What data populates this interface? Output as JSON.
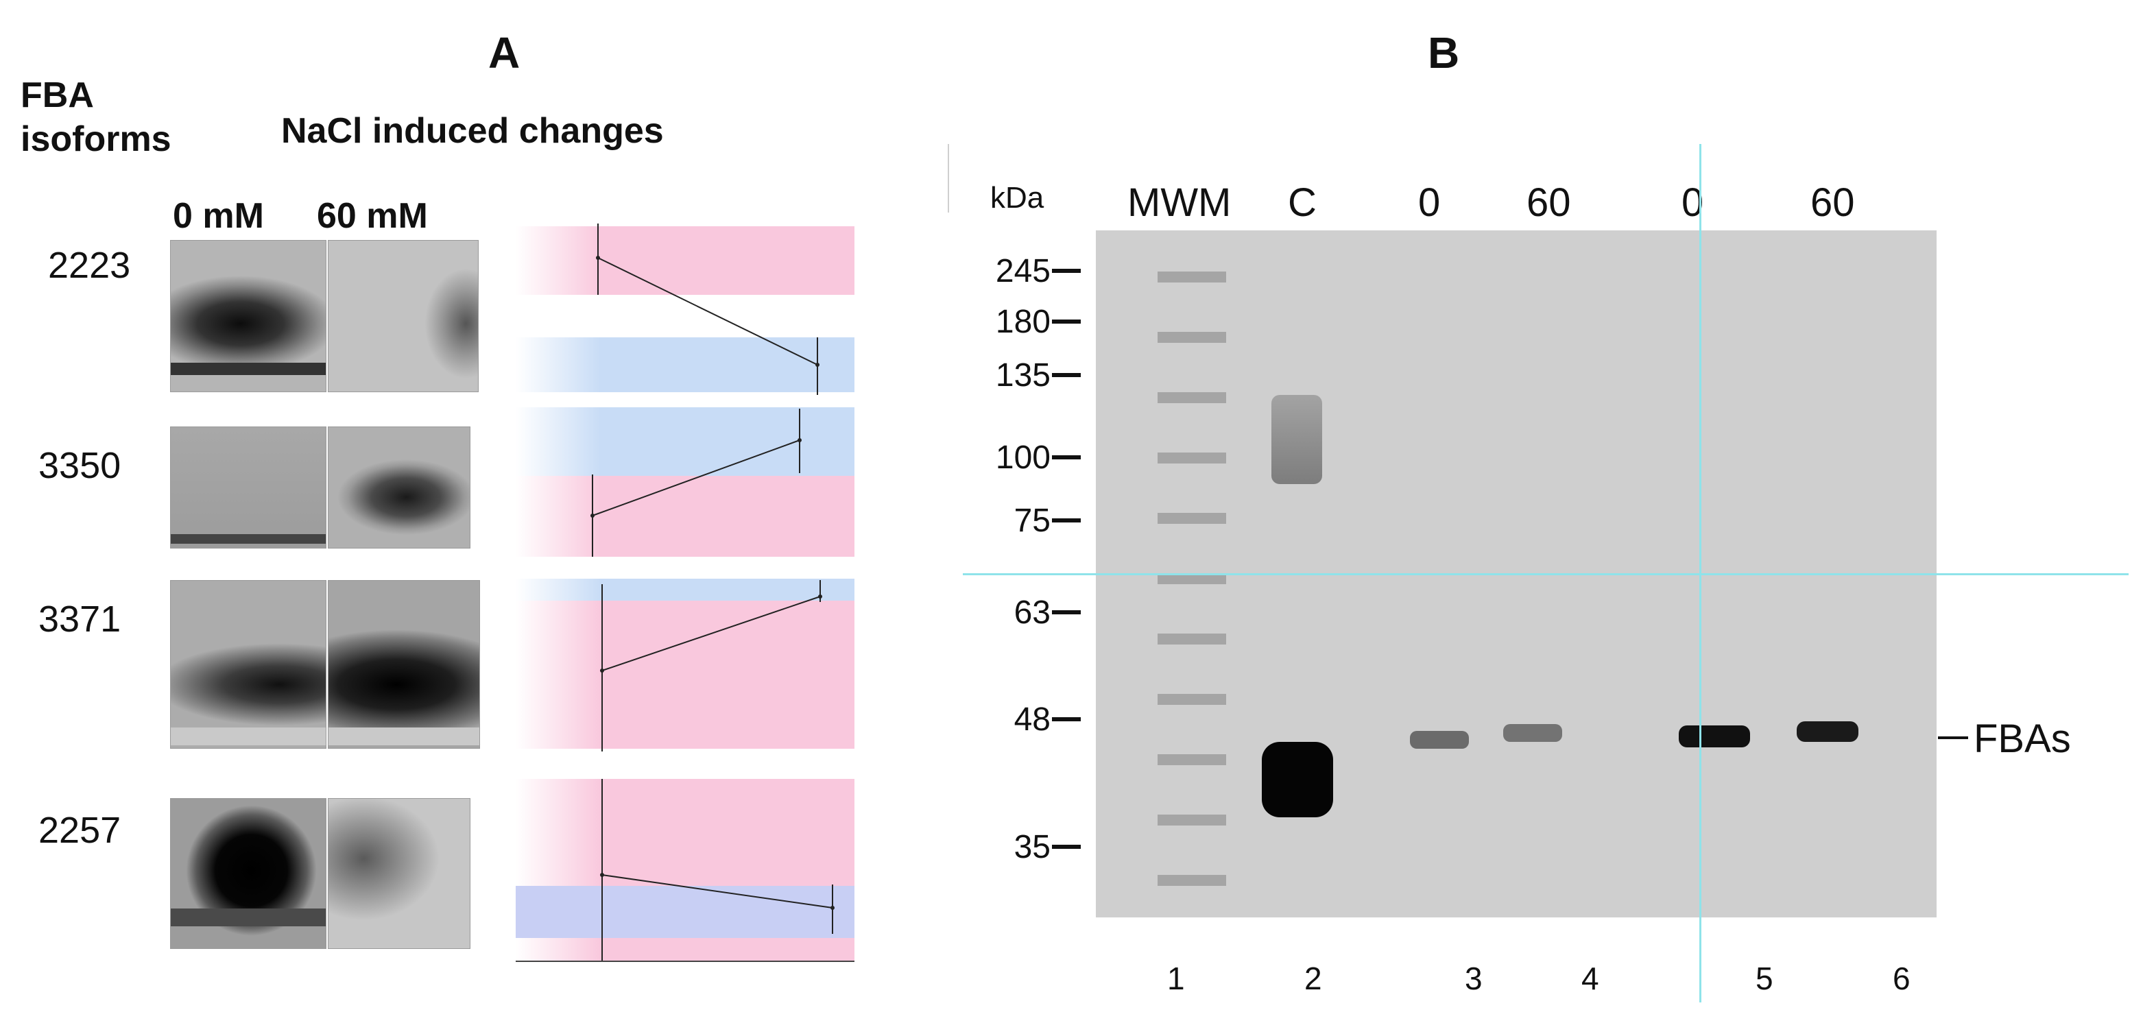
{
  "panel_a": {
    "label": "A",
    "row_header_line1": "FBA",
    "row_header_line2": "isoforms",
    "column_header": "NaCl induced changes",
    "cond_0": "0 mM",
    "cond_60": "60 mM",
    "isoforms": [
      "2223",
      "3350",
      "3371",
      "2257"
    ],
    "trend": [
      "decrease",
      "increase",
      "increase",
      "decrease"
    ],
    "colors": {
      "pink": "#f9c8dd",
      "blue": "#c8dcf6"
    }
  },
  "panel_b": {
    "label": "B",
    "kda_label": "kDa",
    "lane_headers": [
      "MWM",
      "C",
      "0",
      "60",
      "0",
      "60"
    ],
    "markers": [
      "245",
      "180",
      "135",
      "100",
      "75",
      "63",
      "48",
      "35"
    ],
    "band_label": "FBAs",
    "lane_numbers": [
      "1",
      "2",
      "3",
      "4",
      "5",
      "6"
    ],
    "guide_color": "#8fe3ea"
  }
}
